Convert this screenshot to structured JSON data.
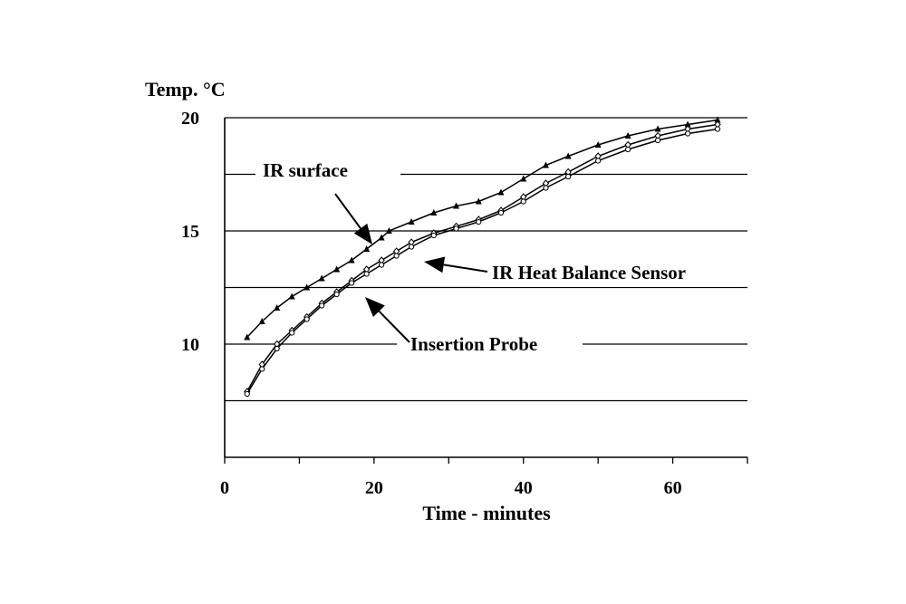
{
  "chart_data": {
    "type": "line",
    "ylabel": "Temp. °C",
    "xlabel": "Time - minutes",
    "xlim": [
      0,
      70
    ],
    "ylim": [
      5,
      20
    ],
    "x_ticks": [
      0,
      20,
      40,
      60
    ],
    "x_tick_labels": [
      "0",
      "20",
      "40",
      "60"
    ],
    "y_ticks": [
      10,
      15,
      20
    ],
    "y_tick_labels": [
      "10",
      "15",
      "20"
    ],
    "grid_y": [
      7.5,
      10,
      12.5,
      15,
      17.5,
      20
    ],
    "legend": "none",
    "series": [
      {
        "name": "IR surface",
        "marker": "triangle",
        "x": [
          3,
          5,
          7,
          9,
          11,
          13,
          15,
          17,
          19,
          21,
          22,
          25,
          28,
          31,
          34,
          37,
          40,
          43,
          46,
          50,
          54,
          58,
          62,
          66
        ],
        "y": [
          10.3,
          11.0,
          11.6,
          12.1,
          12.5,
          12.9,
          13.3,
          13.7,
          14.2,
          14.7,
          15.0,
          15.4,
          15.8,
          16.1,
          16.3,
          16.7,
          17.3,
          17.9,
          18.3,
          18.8,
          19.2,
          19.5,
          19.7,
          19.9
        ]
      },
      {
        "name": "IR Heat Balance Sensor",
        "marker": "diamond",
        "x": [
          3,
          5,
          7,
          9,
          11,
          13,
          15,
          17,
          19,
          21,
          23,
          25,
          28,
          31,
          34,
          37,
          40,
          43,
          46,
          50,
          54,
          58,
          62,
          66
        ],
        "y": [
          7.9,
          9.1,
          10.0,
          10.6,
          11.2,
          11.8,
          12.3,
          12.8,
          13.3,
          13.7,
          14.1,
          14.5,
          14.9,
          15.2,
          15.5,
          15.9,
          16.5,
          17.1,
          17.6,
          18.3,
          18.8,
          19.2,
          19.5,
          19.7
        ]
      },
      {
        "name": "Insertion Probe",
        "marker": "circle",
        "x": [
          3,
          5,
          7,
          9,
          11,
          13,
          15,
          17,
          19,
          21,
          23,
          25,
          28,
          31,
          34,
          37,
          40,
          43,
          46,
          50,
          54,
          58,
          62,
          66
        ],
        "y": [
          7.8,
          8.9,
          9.8,
          10.5,
          11.1,
          11.7,
          12.2,
          12.7,
          13.1,
          13.5,
          13.9,
          14.3,
          14.8,
          15.1,
          15.4,
          15.8,
          16.3,
          16.9,
          17.4,
          18.1,
          18.6,
          19.0,
          19.3,
          19.5
        ]
      }
    ],
    "annotations": [
      {
        "text": "IR surface",
        "target_series": "IR surface"
      },
      {
        "text": "IR Heat Balance Sensor",
        "target_series": "IR Heat Balance Sensor"
      },
      {
        "text": "Insertion Probe",
        "target_series": "Insertion Probe"
      }
    ]
  }
}
